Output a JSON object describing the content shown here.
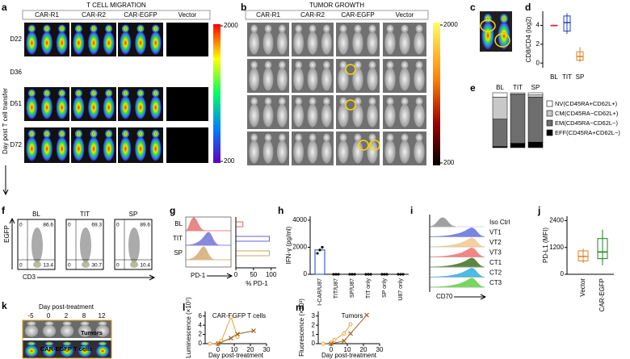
{
  "panels": {
    "a": {
      "label": "a",
      "title": "T CELL MIGRATION",
      "groups": [
        "CAR-R1",
        "CAR-R2",
        "CAR-EGFP",
        "Vector"
      ],
      "group_colors": [
        "#e02020",
        "#2030c0",
        "#20a020",
        "#000000"
      ],
      "rows": [
        "D22",
        "D36",
        "D51",
        "D72"
      ],
      "axis_label": "Day post T cell transfer",
      "colorbar_ticks": [
        2000,
        200
      ]
    },
    "b": {
      "label": "b",
      "title": "TUMOR GROWTH",
      "groups": [
        "CAR-R1",
        "CAR-R2",
        "CAR-EGFP",
        "Vector"
      ],
      "group_colors": [
        "#e02020",
        "#2030c0",
        "#20a020",
        "#000000"
      ],
      "colorbar_ticks": [
        2000,
        200
      ]
    },
    "c": {
      "label": "c"
    },
    "d": {
      "label": "d",
      "ylabel": "CD8/CD4 (log2)",
      "categories": [
        "BL",
        "TIT",
        "SP"
      ],
      "colors": [
        "#e02020",
        "#2040c0",
        "#e08020"
      ],
      "boxes": [
        {
          "min": 4,
          "q1": 4,
          "median": 4,
          "q3": 4,
          "max": 4
        },
        {
          "min": 3.1,
          "q1": 3.4,
          "median": 4.3,
          "q3": 5.0,
          "max": 5.3
        },
        {
          "min": 0.1,
          "q1": 0.3,
          "median": 0.7,
          "q3": 1.2,
          "max": 1.7
        }
      ],
      "ylim": [
        -0.5,
        5.5
      ],
      "yticks": [
        0,
        2,
        4
      ]
    },
    "e": {
      "label": "e",
      "categories": [
        "BL",
        "TIT",
        "SP"
      ],
      "ylim": [
        0,
        100
      ],
      "series": [
        {
          "name": "NV(CD45RA+CD62L+)",
          "color": "#ffffff",
          "values": [
            8,
            2,
            4
          ]
        },
        {
          "name": "CM(CD45RA−CD62L+)",
          "color": "#c8c8c8",
          "values": [
            40,
            2,
            4
          ]
        },
        {
          "name": "EM(CD45RA−CD62L−)",
          "color": "#6e6e6e",
          "values": [
            50,
            88,
            82
          ]
        },
        {
          "name": "EFF(CD45RA+CD62L−)",
          "color": "#000000",
          "values": [
            2,
            8,
            10
          ]
        }
      ]
    },
    "f": {
      "label": "f",
      "ylabel": "EGFP",
      "xlabel": "CD3",
      "plots": [
        {
          "title": "BL",
          "ul": 0,
          "ur": 86.6,
          "ll": 0,
          "lr": 13.4
        },
        {
          "title": "TIT",
          "ul": 0,
          "ur": 69.3,
          "ll": 0,
          "lr": 30.7
        },
        {
          "title": "SP",
          "ul": 0,
          "ur": 89.6,
          "ll": 0,
          "lr": 10.4
        }
      ]
    },
    "g": {
      "label": "g",
      "categories": [
        "BL",
        "TIT",
        "SP"
      ],
      "colors": [
        "#e06060",
        "#6060d0",
        "#d0a060"
      ],
      "values": [
        20,
        95,
        95
      ],
      "xlim": [
        0,
        110
      ],
      "xticks": [
        0,
        50,
        100
      ],
      "hist_xlabel": "PD-1",
      "xlabel": "% PD-1"
    },
    "h": {
      "label": "h",
      "ylabel": "IFN-γ (pg/ml)",
      "categories": [
        "I-CAR/U87",
        "TIT/U87",
        "SP/U87",
        "TIT only",
        "SP only",
        "U87 only"
      ],
      "values": [
        1800,
        0,
        0,
        0,
        0,
        0
      ],
      "points": [
        [
          1550,
          1800,
          2000
        ],
        [
          0,
          0,
          0
        ],
        [
          0,
          0,
          0
        ],
        [
          0,
          0,
          0
        ],
        [
          0,
          0,
          0
        ],
        [
          0,
          0,
          0
        ]
      ],
      "ylim": [
        0,
        4300
      ],
      "yticks": [
        0,
        2000,
        4000
      ],
      "color": "#2040c0"
    },
    "i": {
      "label": "i",
      "labels": [
        "Iso Ctrl",
        "VT1",
        "VT2",
        "VT3",
        "CT1",
        "CT2",
        "CT3"
      ],
      "colors": [
        "#909090",
        "#6070e0",
        "#f0c890",
        "#f07070",
        "#407020",
        "#30b0e0",
        "#60d040"
      ],
      "xlabel": "CD70"
    },
    "j": {
      "label": "j",
      "ylabel": "PD-L1 (MFI)",
      "categories": [
        "Vector",
        "CAR-EGFP"
      ],
      "colors": [
        "#e08020",
        "#208020"
      ],
      "boxes": [
        {
          "min": 500,
          "q1": 600,
          "median": 800,
          "q3": 1050,
          "max": 1150
        },
        {
          "min": 400,
          "q1": 700,
          "median": 1000,
          "q3": 1600,
          "max": 2000
        }
      ],
      "ylim": [
        0,
        2600
      ],
      "yticks": [
        0,
        1200,
        2400
      ]
    },
    "k": {
      "label": "k",
      "title": "Day post-treatment",
      "days": [
        -5,
        0,
        2,
        8,
        12
      ],
      "rows": [
        "Tumors",
        "CAR-EGFP T cells"
      ]
    },
    "l": {
      "label": "l",
      "title": "CAR-EGFP T cells",
      "ylabel": "Luminescence (×10⁷)",
      "xlabel": "Day post-treatment",
      "xlim": [
        -8,
        30
      ],
      "xticks": [
        0,
        10,
        20,
        30
      ],
      "ylim": [
        0,
        7
      ],
      "yticks": [
        0,
        2,
        4,
        6
      ],
      "series": [
        {
          "marker": "circle",
          "color": "#e8a040",
          "x": [
            -5,
            0,
            2,
            8,
            12
          ],
          "values": [
            0,
            0.1,
            0.6,
            5.8,
            1.5
          ]
        },
        {
          "marker": "cross",
          "color": "#a0601a",
          "x": [
            0,
            8,
            12,
            22
          ],
          "values": [
            0,
            1.2,
            2.1,
            2.8
          ]
        }
      ]
    },
    "m": {
      "label": "m",
      "title": "Tumors",
      "ylabel": "Fluorescence (×10³)",
      "xlabel": "Day post-treatment",
      "xlim": [
        -8,
        30
      ],
      "xticks": [
        0,
        10,
        20,
        30
      ],
      "ylim": [
        0,
        3.5
      ],
      "yticks": [
        0,
        1,
        2,
        3
      ],
      "series": [
        {
          "marker": "circle",
          "color": "#e8a040",
          "x": [
            -5,
            0,
            2,
            8,
            12
          ],
          "values": [
            0,
            0.1,
            0.4,
            1.1,
            2.1
          ]
        },
        {
          "marker": "cross",
          "color": "#a0601a",
          "x": [
            0,
            8,
            12,
            22
          ],
          "values": [
            0,
            0.3,
            1.1,
            3.1
          ]
        }
      ]
    }
  }
}
